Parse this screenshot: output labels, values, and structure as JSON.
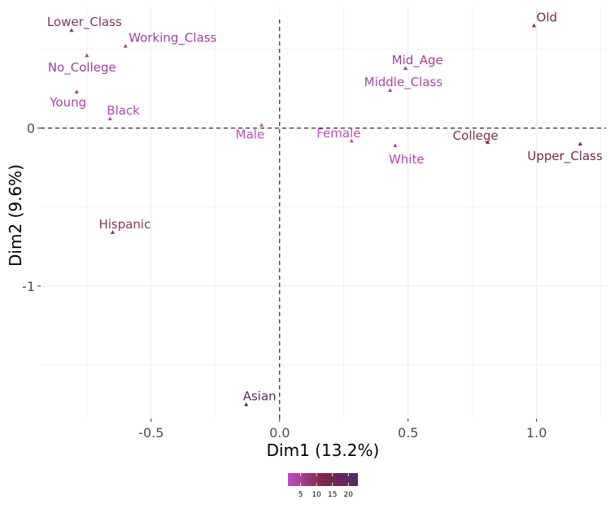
{
  "chart_data": {
    "type": "scatter",
    "xlabel": "Dim1 (13.2%)",
    "ylabel": "Dim2 (9.6%)",
    "xlim": [
      -0.93,
      1.27
    ],
    "ylim": [
      -1.84,
      0.77
    ],
    "x_ticks": [
      -0.5,
      0.0,
      0.5,
      1.0
    ],
    "x_tick_labels": [
      "-0.5",
      "0.0",
      "0.5",
      "1.0"
    ],
    "y_ticks": [
      0,
      -1
    ],
    "y_tick_labels": [
      "0",
      "-1"
    ],
    "grid": true,
    "reference_lines": {
      "x": 0,
      "y": 0,
      "style": "dashed"
    },
    "points": [
      {
        "label": "Lower_Class",
        "x": -0.81,
        "y": 0.62,
        "contrib": 13,
        "color": "#7e3560"
      },
      {
        "label": "Working_Class",
        "x": -0.6,
        "y": 0.52,
        "contrib": 6,
        "color": "#a0409a"
      },
      {
        "label": "No_College",
        "x": -0.75,
        "y": 0.46,
        "contrib": 6,
        "color": "#a0409a"
      },
      {
        "label": "Young",
        "x": -0.79,
        "y": 0.23,
        "contrib": 5,
        "color": "#a845a4"
      },
      {
        "label": "Black",
        "x": -0.66,
        "y": 0.06,
        "contrib": 4,
        "color": "#b548b0"
      },
      {
        "label": "Male",
        "x": -0.07,
        "y": 0.02,
        "contrib": 2,
        "color": "#c04ec0"
      },
      {
        "label": "Female",
        "x": 0.28,
        "y": -0.08,
        "contrib": 3,
        "color": "#c04ec0"
      },
      {
        "label": "Mid_Age",
        "x": 0.49,
        "y": 0.38,
        "contrib": 6,
        "color": "#a0409a"
      },
      {
        "label": "Middle_Class",
        "x": 0.43,
        "y": 0.24,
        "contrib": 5,
        "color": "#a845a4"
      },
      {
        "label": "White",
        "x": 0.45,
        "y": -0.11,
        "contrib": 4,
        "color": "#b548b0"
      },
      {
        "label": "College",
        "x": 0.81,
        "y": -0.09,
        "contrib": 10,
        "color": "#7a3050"
      },
      {
        "label": "Upper_Class",
        "x": 1.17,
        "y": -0.1,
        "contrib": 13,
        "color": "#6e2a48"
      },
      {
        "label": "Old",
        "x": 0.99,
        "y": 0.65,
        "contrib": 14,
        "color": "#7a2848"
      },
      {
        "label": "Hispanic",
        "x": -0.65,
        "y": -0.66,
        "contrib": 13,
        "color": "#7e3560"
      },
      {
        "label": "Asian",
        "x": -0.13,
        "y": -1.75,
        "contrib": 22,
        "color": "#4f2a6c"
      }
    ],
    "legend": {
      "placement": "bottom",
      "type": "colorbar",
      "ticks": [
        5,
        10,
        15,
        20
      ],
      "range": [
        1,
        23
      ],
      "colors": [
        "#c04ec0",
        "#7a2848",
        "#4f2a6c"
      ]
    }
  }
}
